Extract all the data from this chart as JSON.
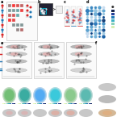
{
  "bg": "#ffffff",
  "red": "#d62728",
  "blue": "#1f77b4",
  "light_red": "#f4a0a0",
  "light_blue": "#aec7e8",
  "dark_gray": "#555555",
  "mid_gray": "#999999",
  "light_gray": "#dddddd",
  "very_light_gray": "#f5f5f5",
  "cyan": "#00bcd4",
  "panel_a_arrows_red": "#e05555",
  "panel_a_arrows_blue": "#5588ee",
  "green1": "#66bb6a",
  "green2": "#26a69a",
  "green3": "#42a5f5",
  "green4": "#26c6da",
  "green5": "#9ccc65",
  "green6": "#4db6ac",
  "tissue_gray": "#c0c0c0",
  "tissue_light": "#d8d8d8",
  "salmon": "#e8a090"
}
